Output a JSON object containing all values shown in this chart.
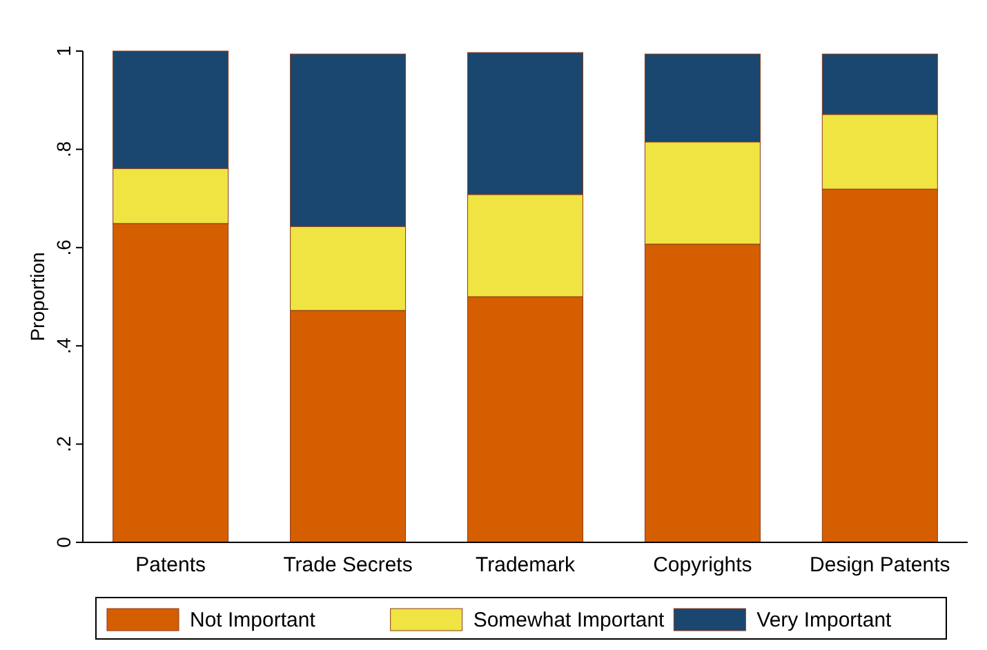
{
  "chart_data": {
    "type": "bar",
    "stacked": true,
    "ylabel": "Proportion",
    "categories": [
      "Patents",
      "Trade Secrets",
      "Trademark",
      "Copyrights",
      "Design Patents"
    ],
    "series": [
      {
        "name": "Not Important",
        "color": "#d55e00",
        "values": [
          0.649,
          0.472,
          0.5,
          0.607,
          0.719
        ]
      },
      {
        "name": "Somewhat Important",
        "color": "#efe442",
        "values": [
          0.112,
          0.171,
          0.208,
          0.208,
          0.152
        ]
      },
      {
        "name": "Very Important",
        "color": "#1a476f",
        "values": [
          0.239,
          0.351,
          0.289,
          0.179,
          0.123
        ]
      }
    ],
    "ylim": [
      0,
      1
    ],
    "yticks": [
      {
        "value": 0,
        "label": "0"
      },
      {
        "value": 0.2,
        "label": ".2"
      },
      {
        "value": 0.4,
        "label": ".4"
      },
      {
        "value": 0.6,
        "label": ".6"
      },
      {
        "value": 0.8,
        "label": ".8"
      },
      {
        "value": 1,
        "label": "1"
      }
    ],
    "grid": false,
    "legend": "bottom"
  }
}
